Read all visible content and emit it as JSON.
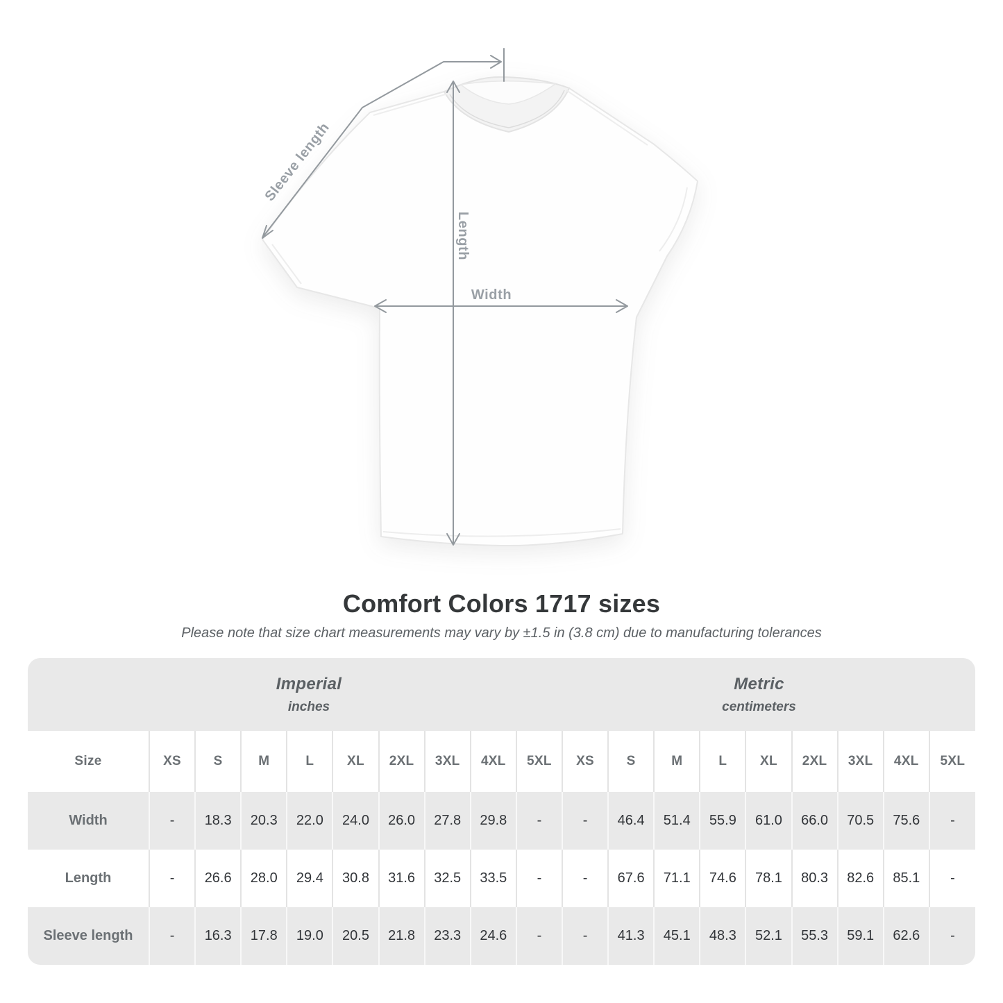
{
  "diagram": {
    "sleeve_length_label": "Sleeve length",
    "length_label": "Length",
    "width_label": "Width"
  },
  "header": {
    "title": "Comfort Colors 1717 sizes",
    "subtitle": "Please note that size chart measurements may vary by ±1.5 in (3.8 cm) due to manufacturing tolerances"
  },
  "table": {
    "size_header": "Size",
    "groups": [
      {
        "label": "Imperial",
        "unit": "inches"
      },
      {
        "label": "Metric",
        "unit": "centimeters"
      }
    ],
    "sizes": [
      "XS",
      "S",
      "M",
      "L",
      "XL",
      "2XL",
      "3XL",
      "4XL",
      "5XL"
    ],
    "rows": [
      {
        "label": "Width",
        "imperial": [
          "-",
          "18.3",
          "20.3",
          "22.0",
          "24.0",
          "26.0",
          "27.8",
          "29.8",
          "-"
        ],
        "metric": [
          "-",
          "46.4",
          "51.4",
          "55.9",
          "61.0",
          "66.0",
          "70.5",
          "75.6",
          "-"
        ]
      },
      {
        "label": "Length",
        "imperial": [
          "-",
          "26.6",
          "28.0",
          "29.4",
          "30.8",
          "31.6",
          "32.5",
          "33.5",
          "-"
        ],
        "metric": [
          "-",
          "67.6",
          "71.1",
          "74.6",
          "78.1",
          "80.3",
          "82.6",
          "85.1",
          "-"
        ]
      },
      {
        "label": "Sleeve length",
        "imperial": [
          "-",
          "16.3",
          "17.8",
          "19.0",
          "20.5",
          "21.8",
          "23.3",
          "24.6",
          "-"
        ],
        "metric": [
          "-",
          "41.3",
          "45.1",
          "48.3",
          "52.1",
          "55.3",
          "59.1",
          "62.6",
          "-"
        ]
      }
    ]
  },
  "colors": {
    "stripe_gray": "#e9e9e9",
    "arrow_gray": "#93999e",
    "measure_label_gray": "#9aa0a6",
    "header_text_gray": "#6b7074",
    "value_text": "#323539"
  }
}
